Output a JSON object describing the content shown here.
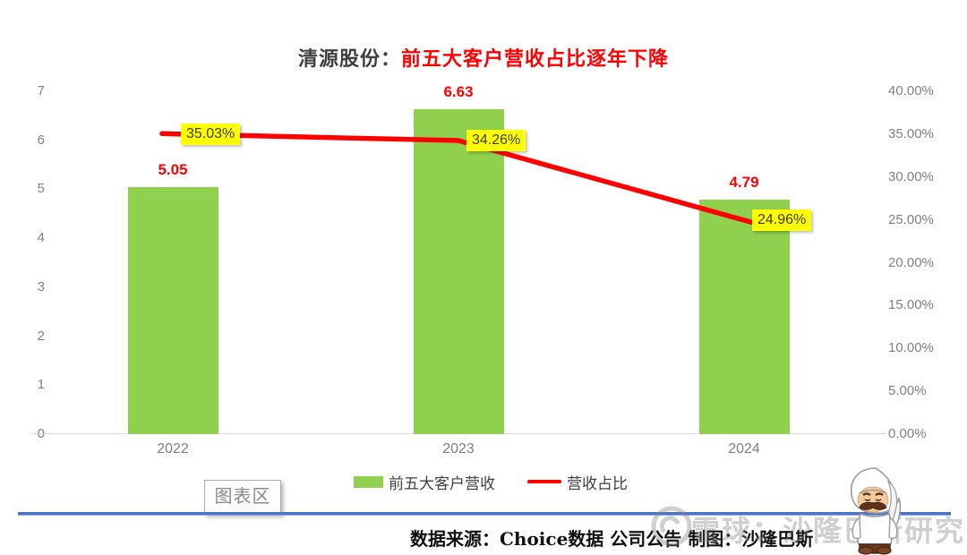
{
  "title": {
    "prefix": "清源股份：",
    "highlight": "前五大客户营收占比逐年下降"
  },
  "chart_data": {
    "type": "bar+line combo",
    "categories": [
      "2022",
      "2023",
      "2024"
    ],
    "series": [
      {
        "name": "前五大客户营收",
        "type": "bar",
        "axis": "left",
        "values": [
          5.05,
          6.63,
          4.79
        ],
        "labels": [
          "5.05",
          "6.63",
          "4.79"
        ],
        "color": "#8FD04E"
      },
      {
        "name": "营收占比",
        "type": "line",
        "axis": "right",
        "values": [
          35.03,
          34.26,
          24.96
        ],
        "labels": [
          "35.03%",
          "34.26%",
          "24.96%"
        ],
        "color": "#FE0000",
        "label_bg": "#FFFF00"
      }
    ],
    "left_axis": {
      "min": 0,
      "max": 7,
      "ticks": [
        "7",
        "6",
        "5",
        "4",
        "3",
        "2",
        "1",
        "0"
      ]
    },
    "right_axis": {
      "min": 0,
      "max": 40,
      "ticks": [
        "40.00%",
        "35.00%",
        "30.00%",
        "25.00%",
        "20.00%",
        "15.00%",
        "10.00%",
        "5.00%",
        "0.00%"
      ]
    },
    "grid": "off",
    "legend_position": "bottom"
  },
  "legend": {
    "bar_label": "前五大客户营收",
    "line_label": "营收占比"
  },
  "tooltip": {
    "label": "图表区"
  },
  "caption": "数据来源：Choice数据  公司公告  制图：沙隆巴斯",
  "watermark": {
    "text": "雪球：沙隆巴斯研究",
    "logo": "snowball-logo"
  },
  "colors": {
    "bar": "#8FD04E",
    "line": "#FE0000",
    "title_highlight": "#FF0000",
    "value_label": "#FF0000",
    "pct_label_bg": "#FFFF00",
    "axis_text": "#7F7F7F",
    "divider": "#4A74C8"
  }
}
